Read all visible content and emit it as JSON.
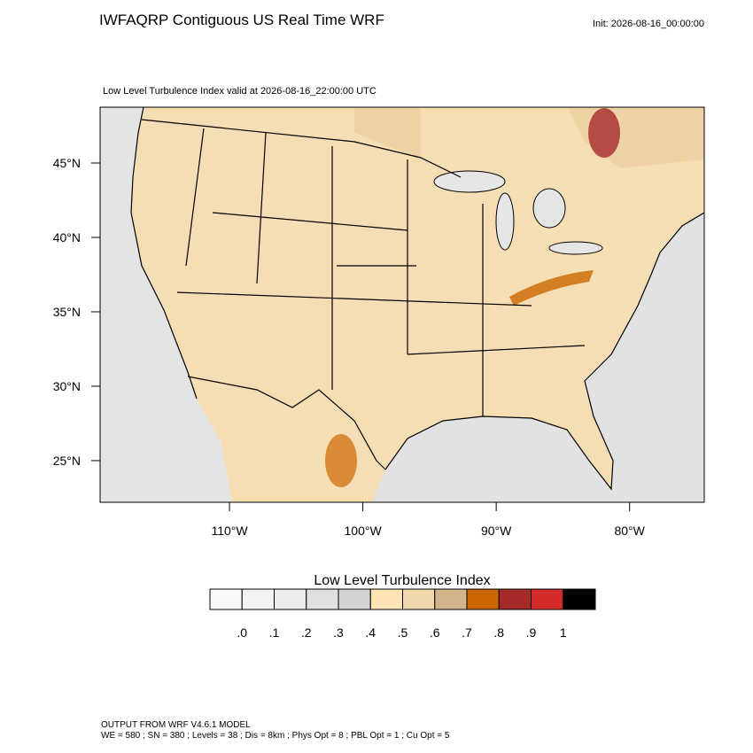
{
  "header": {
    "title": "IWFAQRP Contiguous US Real Time WRF",
    "init": "Init: 2026-08-16_00:00:00"
  },
  "map": {
    "subtitle": "Low Level Turbulence Index valid at 2026-08-16_22:00:00 UTC",
    "xlim": [
      -119.7,
      -74.4
    ],
    "ylim": [
      22.2,
      48.75
    ],
    "xticks": [
      {
        "value": -110,
        "label": "110°W"
      },
      {
        "value": -100,
        "label": "100°W"
      },
      {
        "value": -90,
        "label": "90°W"
      },
      {
        "value": -80,
        "label": "80°W"
      }
    ],
    "yticks": [
      {
        "value": 25,
        "label": "25°N"
      },
      {
        "value": 30,
        "label": "30°N"
      },
      {
        "value": 35,
        "label": "35°N"
      },
      {
        "value": 40,
        "label": "40°N"
      },
      {
        "value": 45,
        "label": "45°N"
      }
    ]
  },
  "colorbar": {
    "title": "Low Level Turbulence Index",
    "colors": [
      "#fafafa",
      "#f3f3f3",
      "#ebebeb",
      "#e1e1e1",
      "#d4d4d4",
      "#fde5b6",
      "#f0d8ae",
      "#d2b48c",
      "#cc6600",
      "#a52a2a",
      "#d42a2a",
      "#000000"
    ],
    "levels": [
      {
        "value": 0,
        "label": ".0"
      },
      {
        "value": 0.1,
        "label": ".1"
      },
      {
        "value": 0.2,
        "label": ".2"
      },
      {
        "value": 0.3,
        "label": ".3"
      },
      {
        "value": 0.4,
        "label": ".4"
      },
      {
        "value": 0.5,
        "label": ".5"
      },
      {
        "value": 0.6,
        "label": ".6"
      },
      {
        "value": 0.7,
        "label": ".7"
      },
      {
        "value": 0.8,
        "label": ".8"
      },
      {
        "value": 0.9,
        "label": ".9"
      },
      1
    ]
  },
  "footer": {
    "line1": "OUTPUT FROM WRF V4.6.1 MODEL",
    "line2": "WE = 580 ; SN = 380 ; Levels = 38 ; Dis = 8km ; Phys Opt = 8 ; PBL Opt = 1 ; Cu Opt = 5"
  }
}
